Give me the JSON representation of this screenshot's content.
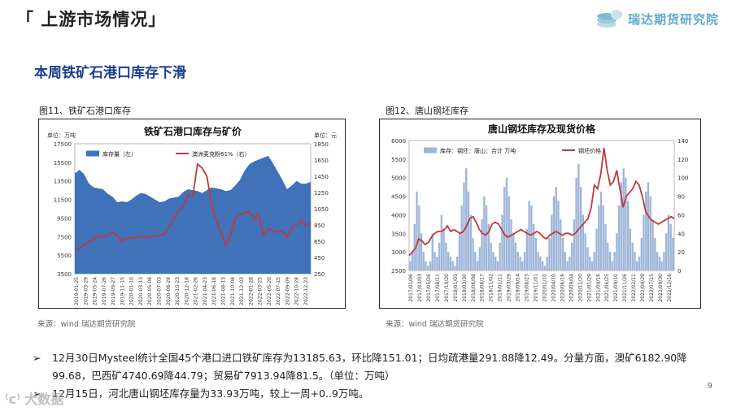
{
  "slide": {
    "title": "「 上游市场情况」",
    "subtitle": "本周铁矿石港口库存下滑",
    "logo_text": "瑞达期货研究院",
    "page_number": "9",
    "watermark": "⁽ᴄ⁾ 大数据"
  },
  "charts_meta": {
    "left_caption": "图11、铁矿石港口库存",
    "right_caption": "图12、唐山钢坯库存",
    "left_source": "来源：wind    瑞达期货研究院",
    "right_source": "来源：wind    瑞达期货研究院"
  },
  "bullets": [
    {
      "arrow": "➢",
      "text": "12月30日Mysteel统计全国45个港口进口铁矿库存为13185.63，环比降151.01；日均疏港量291.88降12.49。分量方面，澳矿6182.90降99.68，巴西矿4740.69降44.79；贸易矿7913.94降81.5。（单位：万吨）"
    },
    {
      "arrow": "➢",
      "text": "12月15日，河北唐山钢坯库存量为33.93万吨，较上一周+0..9万吨。"
    }
  ],
  "chart_data": [
    {
      "type": "area",
      "title": "铁矿石港口库存与矿价",
      "left_unit": "单位：万吨",
      "right_unit": "单位：元",
      "series": [
        {
          "name": "库存量（左）",
          "kind": "area",
          "axis": "left",
          "color": "#3f72b8",
          "values": [
            14300,
            14700,
            14200,
            13200,
            12800,
            12700,
            12600,
            12100,
            11800,
            11200,
            11300,
            11200,
            11500,
            11900,
            12200,
            12100,
            11800,
            11500,
            11200,
            11300,
            11600,
            11700,
            11800,
            12300,
            12600,
            12500,
            12400,
            12200,
            12500,
            12800,
            12700,
            12600,
            12400,
            12500,
            13000,
            13600,
            14600,
            15300,
            15600,
            15800,
            16000,
            16200,
            15400,
            14500,
            13600,
            12600,
            13000,
            13500,
            13200,
            13200,
            13400
          ]
        },
        {
          "name": "澳洲麦克粉61%（右）",
          "kind": "line",
          "axis": "right",
          "color": "#c0393b",
          "values": [
            540,
            560,
            610,
            650,
            670,
            720,
            700,
            720,
            760,
            720,
            650,
            690,
            690,
            700,
            710,
            700,
            710,
            720,
            720,
            740,
            820,
            940,
            1020,
            1080,
            1220,
            1200,
            1600,
            1550,
            1450,
            1100,
            900,
            760,
            600,
            720,
            930,
            980,
            1000,
            1020,
            920,
            980,
            720,
            800,
            780,
            760,
            780,
            700,
            820,
            850,
            900,
            840,
            870
          ]
        }
      ],
      "x_labels": [
        "2019-01-25",
        "2019-03-29",
        "2019-05-24",
        "2019-07-26",
        "2019-09-27",
        "2019-11-15",
        "2020-01-10",
        "2020-03-13",
        "2020-05-08",
        "2020-07-03",
        "2020-08-28",
        "2020-10-23",
        "2020-12-18",
        "2021-02-26",
        "2021-04-23",
        "2021-06-18",
        "2021-08-13",
        "2021-10-08",
        "2021-12-03",
        "2022-01-28",
        "2022-03-25",
        "2022-05-20",
        "2022-07-15",
        "2022-09-09",
        "2022-10-28",
        "2022-12-23"
      ],
      "y_left": {
        "min": 3500,
        "max": 17500,
        "ticks": [
          3500,
          5500,
          7500,
          9500,
          11500,
          13500,
          15500,
          17500
        ]
      },
      "y_right": {
        "min": 250,
        "max": 1850,
        "ticks": [
          250,
          450,
          650,
          850,
          1050,
          1250,
          1450,
          1650,
          1850
        ]
      },
      "legend": "top"
    },
    {
      "type": "bar",
      "title": "唐山钢坯库存及现货价格",
      "series": [
        {
          "name": "库存：钢坯：唐山：合计 万吨",
          "kind": "bar",
          "axis": "right",
          "color": "#9eb6d8",
          "values": [
            10,
            20,
            50,
            85,
            70,
            40,
            20,
            10,
            5,
            10,
            40,
            20,
            15,
            30,
            60,
            45,
            30,
            20,
            15,
            10,
            5,
            15,
            40,
            70,
            95,
            110,
            85,
            60,
            35,
            20,
            10,
            25,
            55,
            80,
            70,
            50,
            30,
            20,
            15,
            10,
            30,
            60,
            90,
            100,
            80,
            55,
            40,
            30,
            20,
            15,
            10,
            20,
            45,
            75,
            70,
            50,
            35,
            20,
            15,
            10,
            5,
            15,
            35,
            60,
            80,
            90,
            75,
            55,
            35,
            20,
            10,
            15,
            30,
            55,
            100,
            115,
            90,
            60,
            40,
            25,
            15,
            10,
            20,
            45,
            70,
            85,
            70,
            50,
            30,
            20,
            10,
            20,
            40,
            70,
            95,
            110,
            100,
            75,
            45,
            30,
            20,
            10,
            15,
            35,
            60,
            85,
            95,
            80,
            55,
            35,
            20,
            15,
            10,
            20,
            40,
            60,
            50,
            35
          ]
        },
        {
          "name": "钢坯价格",
          "kind": "line",
          "axis": "left",
          "color": "#c0393b",
          "values": [
            2900,
            3000,
            3100,
            3350,
            3300,
            3200,
            3250,
            3400,
            3500,
            3550,
            3550,
            3600,
            3700,
            3550,
            3600,
            3550,
            3500,
            3550,
            3700,
            3900,
            3950,
            3800,
            3600,
            3500,
            3450,
            3550,
            3750,
            3800,
            3750,
            3600,
            3450,
            3400,
            3450,
            3500,
            3550,
            3600,
            3550,
            3500,
            3450,
            3500,
            3550,
            3500,
            3400,
            3350,
            3450,
            3500,
            3550,
            3500,
            3450,
            3500,
            3500,
            3450,
            3500,
            3600,
            3700,
            3800,
            3900,
            4200,
            4800,
            4700,
            5100,
            5800,
            5200,
            4800,
            4900,
            5200,
            4700,
            4200,
            4500,
            4600,
            4700,
            4900,
            4800,
            4500,
            4100,
            3950,
            3850,
            3800,
            3750,
            3800,
            3850,
            3900,
            3950,
            3900
          ]
        }
      ],
      "x_labels": [
        "2017/01/06",
        "2017/03/03",
        "2017/05/26",
        "2017/08/11",
        "2017/10/20",
        "2018/01/05",
        "2018/03/30",
        "2018/06/08",
        "2018/08/17",
        "2018/11/02",
        "2019/01/11",
        "2019/03/29",
        "2019/06/14",
        "2019/08/23",
        "2019/11/01",
        "2020/01/10",
        "2020/04/10",
        "2020/06/19",
        "2020/09/04",
        "2020/11/20",
        "2021/01/29",
        "2021/04/16",
        "2021/06/25",
        "2021/09/10",
        "2021/11/26",
        "2022/02/11",
        "2022/04/29",
        "2022/07/15",
        "2022/09/30",
        "2022/12/16"
      ],
      "y_left": {
        "min": 2500,
        "max": 6000,
        "ticks": [
          2500,
          3000,
          3500,
          4000,
          4500,
          5000,
          5500,
          6000
        ]
      },
      "y_right": {
        "min": 0,
        "max": 140,
        "ticks": [
          0,
          20,
          40,
          60,
          80,
          100,
          120,
          140
        ]
      },
      "legend": "top"
    }
  ]
}
